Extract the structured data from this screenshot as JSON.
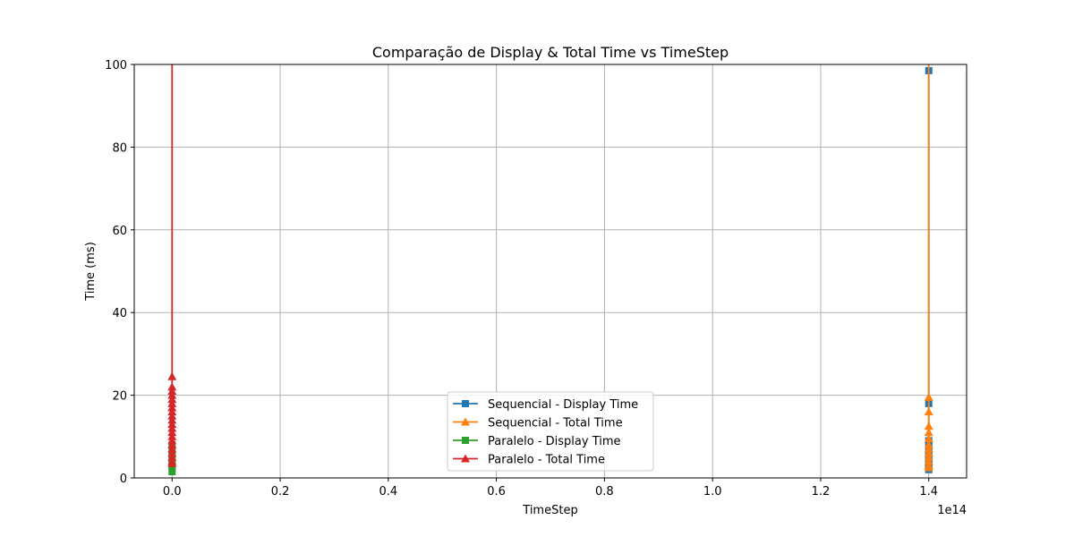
{
  "chart_data": {
    "type": "line",
    "title": "Comparação de Display & Total Time vs TimeStep",
    "xlabel": "TimeStep",
    "ylabel": "Time (ms)",
    "x_offset_label": "1e14",
    "xlim": [
      -7000000000000.0,
      147000000000000.0
    ],
    "ylim": [
      0,
      100
    ],
    "x_ticks": [
      0,
      20000000000000.0,
      40000000000000.0,
      60000000000000.0,
      80000000000000.0,
      100000000000000.0,
      120000000000000.0,
      140000000000000.0
    ],
    "x_tick_labels": [
      "0.0",
      "0.2",
      "0.4",
      "0.6",
      "0.8",
      "1.0",
      "1.2",
      "1.4"
    ],
    "y_ticks": [
      0,
      20,
      40,
      60,
      80,
      100
    ],
    "y_tick_labels": [
      "0",
      "20",
      "40",
      "60",
      "80",
      "100"
    ],
    "grid": true,
    "legend_position": "lower center",
    "series": [
      {
        "name": "Sequencial - Display Time",
        "color": "#1f77b4",
        "marker": "square",
        "points": [
          [
            140000000000000.0,
            98.5
          ],
          [
            140000000000000.0,
            18
          ],
          [
            140000000000000.0,
            9
          ],
          [
            140000000000000.0,
            8
          ],
          [
            140000000000000.0,
            7
          ],
          [
            140000000000000.0,
            6
          ],
          [
            140000000000000.0,
            5
          ],
          [
            140000000000000.0,
            4
          ],
          [
            140000000000000.0,
            3.5
          ],
          [
            140000000000000.0,
            3
          ],
          [
            140000000000000.0,
            2.5
          ],
          [
            140000000000000.0,
            2
          ]
        ]
      },
      {
        "name": "Sequencial - Total Time",
        "color": "#ff7f0e",
        "marker": "triangle",
        "points": [
          [
            140000000000000.0,
            102
          ],
          [
            140000000000000.0,
            19.5
          ],
          [
            140000000000000.0,
            16
          ],
          [
            140000000000000.0,
            12.5
          ],
          [
            140000000000000.0,
            11
          ],
          [
            140000000000000.0,
            9.5
          ],
          [
            140000000000000.0,
            8
          ],
          [
            140000000000000.0,
            7
          ],
          [
            140000000000000.0,
            6
          ],
          [
            140000000000000.0,
            5
          ],
          [
            140000000000000.0,
            4
          ],
          [
            140000000000000.0,
            3
          ],
          [
            140000000000000.0,
            2.5
          ]
        ]
      },
      {
        "name": "Paralelo - Display Time",
        "color": "#2ca02c",
        "marker": "square",
        "points": [
          [
            0,
            1.5
          ],
          [
            0,
            2.5
          ],
          [
            0,
            3.5
          ],
          [
            0,
            4.5
          ],
          [
            0,
            5.5
          ],
          [
            0,
            6.5
          ],
          [
            0,
            8
          ]
        ]
      },
      {
        "name": "Paralelo - Total Time",
        "color": "#d62728",
        "marker": "triangle",
        "points": [
          [
            0,
            120
          ],
          [
            0,
            24.5
          ],
          [
            0,
            22
          ],
          [
            0,
            21
          ],
          [
            0,
            20
          ],
          [
            0,
            19
          ],
          [
            0,
            18
          ],
          [
            0,
            17
          ],
          [
            0,
            16
          ],
          [
            0,
            15
          ],
          [
            0,
            14
          ],
          [
            0,
            13
          ],
          [
            0,
            12
          ],
          [
            0,
            11
          ],
          [
            0,
            10
          ],
          [
            0,
            9
          ],
          [
            0,
            8
          ],
          [
            0,
            7
          ],
          [
            0,
            6
          ],
          [
            0,
            5
          ],
          [
            0,
            4
          ],
          [
            0,
            3.5
          ]
        ]
      }
    ]
  }
}
